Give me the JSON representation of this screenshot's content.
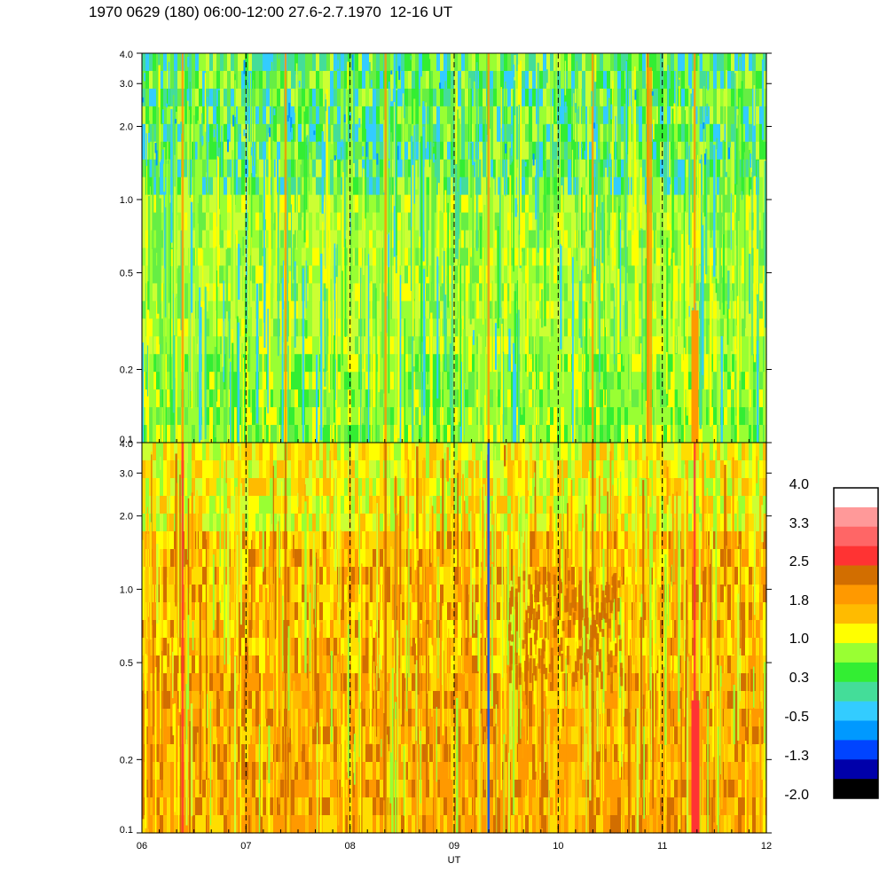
{
  "title": "1970 0629 (180) 06:00-12:00 27.6-2.7.1970  12-16 UT",
  "chart_data": [
    {
      "type": "heatmap",
      "panel": "top",
      "x": {
        "ticks": [
          "06",
          "07",
          "08",
          "09",
          "10",
          "11",
          "12"
        ],
        "range": [
          6,
          12
        ],
        "label": ""
      },
      "y": {
        "scale": "log",
        "range": [
          0.1,
          4.0
        ],
        "ticks": [
          "0.1",
          "0.2",
          "0.5",
          "1.0",
          "2.0",
          "3.0",
          "4.0"
        ],
        "label": ""
      },
      "dominant_levels": {
        "low_freq": "0.3-1.0",
        "high_freq": "-0.5-0.3"
      },
      "dashed_gridlines_x": [
        7,
        8,
        9,
        10,
        11
      ]
    },
    {
      "type": "heatmap",
      "panel": "bottom",
      "x": {
        "ticks": [
          "06",
          "07",
          "08",
          "09",
          "10",
          "11",
          "12"
        ],
        "range": [
          6,
          12
        ],
        "label": "UT"
      },
      "y": {
        "scale": "log",
        "range": [
          0.1,
          4.0
        ],
        "ticks": [
          "0.1",
          "0.2",
          "0.5",
          "1.0",
          "2.0",
          "3.0",
          "4.0"
        ],
        "label": ""
      },
      "dominant_levels": {
        "low_freq": "1.8-2.5",
        "high_freq": "1.0-1.8"
      },
      "dashed_gridlines_x": [
        7,
        8,
        9,
        10,
        11
      ]
    }
  ],
  "colorbar": {
    "labels": [
      "4.0",
      "3.3",
      "2.5",
      "1.8",
      "1.0",
      "0.3",
      "-0.5",
      "-1.3",
      "-2.0"
    ],
    "colors": [
      "#ffffff",
      "#ff9999",
      "#ff6666",
      "#ff3333",
      "#d26e00",
      "#ff9900",
      "#ffbb00",
      "#ffff00",
      "#99ff33",
      "#33ee33",
      "#44dd99",
      "#33ccff",
      "#0099ff",
      "#0044ff",
      "#0000aa",
      "#000000"
    ]
  },
  "palette": {
    "top": [
      "#ffff00",
      "#ccff33",
      "#99ff33",
      "#66ee44",
      "#33ee33",
      "#44dd99",
      "#33ccff"
    ],
    "bottom": [
      "#ffbb00",
      "#ff9900",
      "#ffdd00",
      "#ffff00",
      "#ccff33",
      "#d26e00",
      "#99ff33"
    ],
    "accent_red": "#ff3333",
    "accent_darkorange": "#d26e00",
    "accent_blue": "#0044ff"
  }
}
